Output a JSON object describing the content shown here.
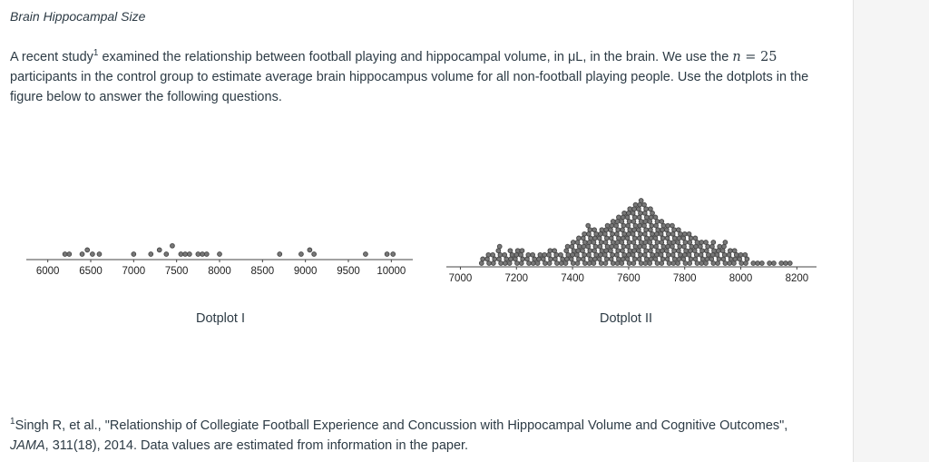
{
  "question": {
    "title": "Brain Hippocampal Size",
    "intro_part1": "A recent study",
    "intro_sup": "1",
    "intro_part2": " examined the relationship between football playing and hippocampal volume, in μL, in the brain. We use the ",
    "n_symbol": "n",
    "n_equals": " = ",
    "n_value": "25",
    "intro_part3": " participants in the control group to estimate average brain hippocampus volume for all non-football playing people. Use the dotplots in the figure below to answer the following questions."
  },
  "footnote": {
    "sup": "1",
    "text": "Singh R, et al., \"Relationship of Collegiate Football Experience and Concussion with Hippocampal Volume and Cognitive Outcomes\",",
    "journal": "JAMA",
    "rest": ", 311(18), 2014. Data values are estimated from information in the paper."
  },
  "chart_data": [
    {
      "type": "scatter",
      "subtype": "dotplot",
      "title": "Dotplot I",
      "xlim": [
        5750,
        10250
      ],
      "ticks": [
        6000,
        6500,
        7000,
        7500,
        8000,
        8500,
        9000,
        9500,
        10000
      ],
      "grid": false,
      "values": [
        6200,
        6250,
        6400,
        6460,
        6520,
        6600,
        7000,
        7200,
        7300,
        7380,
        7450,
        7550,
        7600,
        7650,
        7750,
        7800,
        7850,
        8000,
        8700,
        8950,
        9050,
        9100,
        9700,
        9950,
        10020
      ],
      "stack_levels": [
        0,
        0,
        0,
        1,
        0,
        0,
        0,
        0,
        1,
        0,
        2,
        0,
        0,
        0,
        0,
        0,
        0,
        0,
        0,
        0,
        1,
        0,
        0,
        0,
        0
      ]
    },
    {
      "type": "scatter",
      "subtype": "dotplot",
      "title": "Dotplot II",
      "xlim": [
        6950,
        8270
      ],
      "ticks": [
        7000,
        7200,
        7400,
        7600,
        7800,
        8000,
        8200
      ],
      "grid": false,
      "values": [
        7080,
        7100,
        7120,
        7140,
        7160,
        7180,
        7200,
        7220,
        7240,
        7260,
        7280,
        7300,
        7320,
        7340,
        7360,
        7380,
        7400,
        7420,
        7440,
        7460,
        7480,
        7500,
        7520,
        7540,
        7560,
        7580,
        7600,
        7620,
        7640,
        7660,
        7680,
        7700,
        7720,
        7740,
        7760,
        7780,
        7800,
        7820,
        7840,
        7860,
        7880,
        7900,
        7920,
        7940,
        7960,
        7980,
        8000,
        8020,
        8040,
        8060,
        8080,
        8100,
        8120,
        8140,
        8160,
        8180
      ],
      "counts": [
        2,
        3,
        3,
        5,
        3,
        4,
        4,
        4,
        3,
        3,
        3,
        3,
        4,
        4,
        3,
        5,
        6,
        7,
        8,
        10,
        9,
        9,
        10,
        11,
        12,
        13,
        14,
        15,
        16,
        15,
        14,
        12,
        11,
        10,
        10,
        9,
        8,
        8,
        7,
        6,
        6,
        6,
        5,
        6,
        4,
        4,
        3,
        3,
        1,
        1,
        1,
        1,
        1,
        1,
        1,
        1
      ]
    }
  ]
}
